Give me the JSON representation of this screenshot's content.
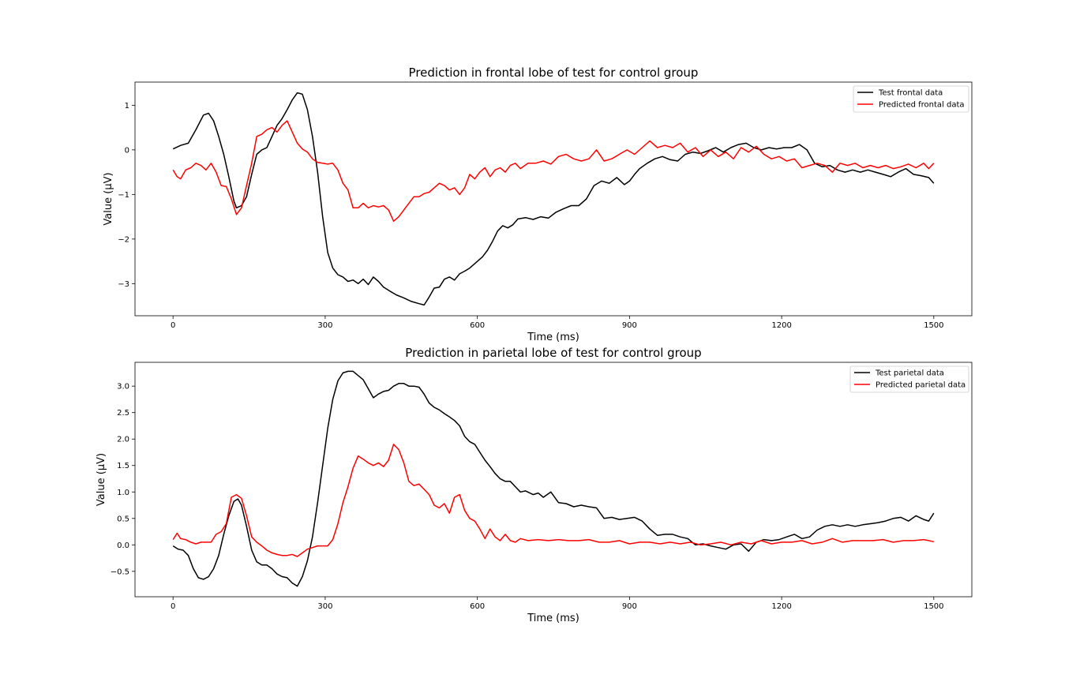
{
  "chart_data": [
    {
      "type": "line",
      "title": "Prediction in frontal lobe of test for control group",
      "xlabel": "Time (ms)",
      "ylabel": "Value (μV)",
      "xlim": [
        -75,
        1575
      ],
      "ylim": [
        -3.72,
        1.52
      ],
      "xticks": [
        0,
        300,
        600,
        900,
        1200,
        1500
      ],
      "yticks": [
        -3,
        -2,
        -1,
        0,
        1
      ],
      "ytick_labels": [
        "−3",
        "−2",
        "−1",
        "0",
        "1"
      ],
      "grid": false,
      "legend_position": "top-right",
      "series": [
        {
          "name": "Test frontal data",
          "color": "#000000",
          "x": [
            0,
            15,
            30,
            45,
            60,
            70,
            80,
            90,
            100,
            110,
            120,
            125,
            135,
            145,
            155,
            165,
            175,
            185,
            195,
            205,
            215,
            225,
            235,
            245,
            255,
            265,
            275,
            285,
            295,
            305,
            315,
            325,
            335,
            345,
            355,
            365,
            375,
            385,
            395,
            405,
            415,
            425,
            440,
            455,
            470,
            485,
            495,
            505,
            515,
            525,
            535,
            545,
            555,
            565,
            575,
            585,
            595,
            610,
            620,
            630,
            640,
            650,
            660,
            670,
            680,
            695,
            710,
            725,
            740,
            755,
            770,
            785,
            800,
            815,
            830,
            845,
            860,
            875,
            890,
            900,
            910,
            920,
            935,
            950,
            965,
            980,
            995,
            1010,
            1025,
            1040,
            1055,
            1070,
            1085,
            1100,
            1115,
            1130,
            1145,
            1160,
            1175,
            1190,
            1205,
            1220,
            1235,
            1250,
            1265,
            1280,
            1295,
            1310,
            1325,
            1340,
            1355,
            1370,
            1385,
            1400,
            1415,
            1430,
            1445,
            1460,
            1475,
            1490,
            1500
          ],
          "y": [
            0.02,
            0.1,
            0.15,
            0.45,
            0.78,
            0.82,
            0.65,
            0.3,
            -0.1,
            -0.6,
            -1.15,
            -1.3,
            -1.25,
            -1.05,
            -0.55,
            -0.1,
            0.0,
            0.05,
            0.3,
            0.55,
            0.7,
            0.9,
            1.12,
            1.28,
            1.25,
            0.9,
            0.3,
            -0.5,
            -1.5,
            -2.3,
            -2.65,
            -2.8,
            -2.85,
            -2.95,
            -2.92,
            -3.0,
            -2.9,
            -3.02,
            -2.85,
            -2.95,
            -3.08,
            -3.15,
            -3.25,
            -3.32,
            -3.4,
            -3.45,
            -3.48,
            -3.3,
            -3.1,
            -3.08,
            -2.9,
            -2.85,
            -2.92,
            -2.78,
            -2.72,
            -2.65,
            -2.55,
            -2.4,
            -2.25,
            -2.05,
            -1.82,
            -1.7,
            -1.75,
            -1.68,
            -1.55,
            -1.52,
            -1.56,
            -1.5,
            -1.53,
            -1.4,
            -1.32,
            -1.25,
            -1.25,
            -1.1,
            -0.8,
            -0.7,
            -0.75,
            -0.62,
            -0.78,
            -0.7,
            -0.55,
            -0.42,
            -0.3,
            -0.2,
            -0.15,
            -0.22,
            -0.25,
            -0.1,
            -0.05,
            -0.08,
            -0.02,
            0.05,
            -0.05,
            0.05,
            0.12,
            0.15,
            0.05,
            0.0,
            0.05,
            0.02,
            0.05,
            0.05,
            0.12,
            0.0,
            -0.3,
            -0.38,
            -0.35,
            -0.45,
            -0.5,
            -0.45,
            -0.5,
            -0.45,
            -0.5,
            -0.55,
            -0.6,
            -0.5,
            -0.42,
            -0.55,
            -0.58,
            -0.62,
            -0.75
          ]
        },
        {
          "name": "Predicted frontal data",
          "color": "#ff0000",
          "x": [
            0,
            8,
            15,
            25,
            35,
            45,
            55,
            65,
            75,
            85,
            95,
            105,
            115,
            125,
            135,
            145,
            155,
            165,
            175,
            185,
            195,
            205,
            215,
            225,
            235,
            245,
            255,
            265,
            275,
            285,
            295,
            305,
            315,
            325,
            335,
            345,
            355,
            365,
            375,
            385,
            395,
            405,
            415,
            425,
            435,
            445,
            455,
            465,
            475,
            485,
            495,
            505,
            515,
            525,
            535,
            545,
            555,
            565,
            575,
            585,
            595,
            605,
            615,
            625,
            635,
            645,
            655,
            665,
            675,
            685,
            700,
            715,
            730,
            745,
            760,
            775,
            790,
            805,
            820,
            835,
            850,
            865,
            880,
            895,
            910,
            925,
            940,
            955,
            970,
            985,
            1000,
            1015,
            1030,
            1045,
            1060,
            1075,
            1090,
            1105,
            1120,
            1135,
            1150,
            1165,
            1180,
            1195,
            1210,
            1225,
            1240,
            1255,
            1270,
            1285,
            1300,
            1315,
            1330,
            1345,
            1360,
            1375,
            1390,
            1405,
            1420,
            1435,
            1450,
            1465,
            1480,
            1490,
            1500
          ],
          "y": [
            -0.45,
            -0.6,
            -0.65,
            -0.45,
            -0.4,
            -0.3,
            -0.35,
            -0.45,
            -0.3,
            -0.5,
            -0.8,
            -0.82,
            -1.1,
            -1.45,
            -1.3,
            -0.8,
            -0.3,
            0.3,
            0.35,
            0.45,
            0.5,
            0.4,
            0.55,
            0.65,
            0.4,
            0.15,
            0.02,
            -0.05,
            -0.2,
            -0.28,
            -0.3,
            -0.32,
            -0.3,
            -0.45,
            -0.75,
            -0.9,
            -1.3,
            -1.3,
            -1.2,
            -1.3,
            -1.25,
            -1.28,
            -1.25,
            -1.35,
            -1.6,
            -1.5,
            -1.35,
            -1.2,
            -1.05,
            -1.05,
            -0.98,
            -0.95,
            -0.85,
            -0.75,
            -0.8,
            -0.9,
            -0.85,
            -1.0,
            -0.85,
            -0.55,
            -0.65,
            -0.5,
            -0.4,
            -0.6,
            -0.45,
            -0.4,
            -0.5,
            -0.35,
            -0.3,
            -0.42,
            -0.3,
            -0.3,
            -0.25,
            -0.32,
            -0.15,
            -0.1,
            -0.2,
            -0.25,
            -0.2,
            0.0,
            -0.25,
            -0.2,
            -0.1,
            0.0,
            -0.1,
            0.05,
            0.2,
            0.05,
            0.1,
            0.05,
            0.15,
            -0.05,
            0.05,
            -0.15,
            0.0,
            -0.15,
            -0.05,
            -0.2,
            0.05,
            -0.05,
            0.08,
            -0.1,
            -0.2,
            -0.15,
            -0.25,
            -0.2,
            -0.4,
            -0.35,
            -0.3,
            -0.35,
            -0.5,
            -0.3,
            -0.35,
            -0.3,
            -0.4,
            -0.35,
            -0.4,
            -0.35,
            -0.42,
            -0.38,
            -0.32,
            -0.4,
            -0.3,
            -0.42,
            -0.3
          ]
        }
      ]
    },
    {
      "type": "line",
      "title": "Prediction in parietal lobe of test for control group",
      "xlabel": "Time (ms)",
      "ylabel": "Value (μV)",
      "xlim": [
        -75,
        1575
      ],
      "ylim": [
        -0.98,
        3.45
      ],
      "xticks": [
        0,
        300,
        600,
        900,
        1200,
        1500
      ],
      "yticks": [
        -0.5,
        0.0,
        0.5,
        1.0,
        1.5,
        2.0,
        2.5,
        3.0
      ],
      "ytick_labels": [
        "−0.5",
        "0.0",
        "0.5",
        "1.0",
        "1.5",
        "2.0",
        "2.5",
        "3.0"
      ],
      "grid": false,
      "legend_position": "top-right",
      "series": [
        {
          "name": "Test parietal data",
          "color": "#000000",
          "x": [
            0,
            10,
            20,
            30,
            40,
            50,
            60,
            70,
            80,
            90,
            100,
            110,
            120,
            128,
            135,
            145,
            155,
            165,
            175,
            185,
            195,
            205,
            215,
            225,
            235,
            245,
            255,
            265,
            275,
            285,
            295,
            305,
            315,
            325,
            335,
            345,
            355,
            365,
            375,
            385,
            395,
            405,
            415,
            425,
            435,
            445,
            455,
            465,
            475,
            485,
            495,
            505,
            515,
            525,
            535,
            545,
            555,
            565,
            575,
            585,
            595,
            605,
            615,
            625,
            635,
            645,
            655,
            665,
            675,
            685,
            695,
            710,
            720,
            730,
            745,
            760,
            775,
            790,
            805,
            820,
            835,
            850,
            865,
            880,
            895,
            910,
            925,
            940,
            955,
            970,
            985,
            1000,
            1015,
            1030,
            1045,
            1060,
            1075,
            1090,
            1105,
            1120,
            1135,
            1150,
            1165,
            1180,
            1195,
            1210,
            1225,
            1240,
            1255,
            1270,
            1285,
            1300,
            1315,
            1330,
            1345,
            1360,
            1375,
            1390,
            1405,
            1420,
            1435,
            1450,
            1465,
            1480,
            1490,
            1500
          ],
          "y": [
            -0.02,
            -0.08,
            -0.1,
            -0.2,
            -0.45,
            -0.62,
            -0.65,
            -0.6,
            -0.45,
            -0.2,
            0.2,
            0.55,
            0.82,
            0.87,
            0.75,
            0.35,
            -0.1,
            -0.32,
            -0.38,
            -0.38,
            -0.45,
            -0.55,
            -0.6,
            -0.62,
            -0.72,
            -0.78,
            -0.6,
            -0.3,
            0.15,
            0.8,
            1.5,
            2.2,
            2.75,
            3.1,
            3.25,
            3.28,
            3.28,
            3.2,
            3.12,
            2.95,
            2.78,
            2.85,
            2.9,
            2.92,
            3.0,
            3.05,
            3.05,
            3.0,
            3.0,
            2.98,
            2.85,
            2.68,
            2.6,
            2.55,
            2.48,
            2.42,
            2.35,
            2.25,
            2.05,
            1.95,
            1.9,
            1.75,
            1.6,
            1.48,
            1.35,
            1.25,
            1.2,
            1.2,
            1.1,
            1.0,
            1.02,
            0.95,
            0.98,
            0.9,
            1.0,
            0.8,
            0.78,
            0.72,
            0.75,
            0.72,
            0.7,
            0.5,
            0.52,
            0.48,
            0.5,
            0.52,
            0.45,
            0.3,
            0.18,
            0.2,
            0.2,
            0.15,
            0.12,
            0.0,
            0.02,
            -0.02,
            -0.05,
            -0.08,
            0.0,
            0.02,
            -0.12,
            0.05,
            0.1,
            0.08,
            0.1,
            0.15,
            0.2,
            0.12,
            0.15,
            0.28,
            0.35,
            0.38,
            0.35,
            0.38,
            0.35,
            0.38,
            0.4,
            0.42,
            0.45,
            0.5,
            0.52,
            0.45,
            0.55,
            0.48,
            0.45,
            0.6
          ]
        },
        {
          "name": "Predicted parietal data",
          "color": "#ff0000",
          "x": [
            0,
            8,
            15,
            25,
            35,
            45,
            55,
            65,
            75,
            85,
            95,
            105,
            115,
            125,
            135,
            145,
            155,
            165,
            175,
            185,
            195,
            205,
            215,
            225,
            235,
            245,
            255,
            265,
            275,
            285,
            295,
            305,
            315,
            325,
            335,
            345,
            355,
            365,
            375,
            385,
            395,
            405,
            415,
            425,
            435,
            445,
            455,
            465,
            475,
            485,
            495,
            505,
            515,
            525,
            535,
            545,
            555,
            565,
            575,
            585,
            595,
            605,
            615,
            625,
            635,
            645,
            655,
            665,
            675,
            685,
            700,
            720,
            740,
            760,
            780,
            800,
            820,
            840,
            860,
            880,
            900,
            920,
            940,
            960,
            980,
            1000,
            1020,
            1040,
            1060,
            1080,
            1100,
            1120,
            1140,
            1160,
            1180,
            1200,
            1220,
            1240,
            1260,
            1280,
            1300,
            1320,
            1340,
            1360,
            1380,
            1400,
            1420,
            1440,
            1460,
            1480,
            1490,
            1500
          ],
          "y": [
            0.1,
            0.22,
            0.12,
            0.1,
            0.05,
            0.02,
            0.05,
            0.05,
            0.05,
            0.2,
            0.25,
            0.4,
            0.9,
            0.95,
            0.88,
            0.55,
            0.15,
            0.05,
            -0.02,
            -0.1,
            -0.15,
            -0.18,
            -0.2,
            -0.2,
            -0.18,
            -0.22,
            -0.15,
            -0.08,
            -0.05,
            -0.02,
            -0.02,
            -0.02,
            0.1,
            0.4,
            0.8,
            1.1,
            1.45,
            1.68,
            1.62,
            1.55,
            1.5,
            1.55,
            1.48,
            1.6,
            1.9,
            1.8,
            1.55,
            1.2,
            1.12,
            1.15,
            1.05,
            0.95,
            0.75,
            0.7,
            0.78,
            0.6,
            0.9,
            0.95,
            0.65,
            0.5,
            0.45,
            0.3,
            0.12,
            0.3,
            0.15,
            0.08,
            0.2,
            0.08,
            0.05,
            0.12,
            0.08,
            0.1,
            0.08,
            0.1,
            0.08,
            0.08,
            0.1,
            0.05,
            0.05,
            0.08,
            0.02,
            0.05,
            0.05,
            0.02,
            0.05,
            0.02,
            0.05,
            0.0,
            0.02,
            0.05,
            0.0,
            0.05,
            0.02,
            0.08,
            0.02,
            0.05,
            0.05,
            0.08,
            0.02,
            0.05,
            0.12,
            0.05,
            0.08,
            0.08,
            0.08,
            0.1,
            0.05,
            0.08,
            0.08,
            0.1,
            0.08,
            0.06
          ]
        }
      ]
    }
  ]
}
